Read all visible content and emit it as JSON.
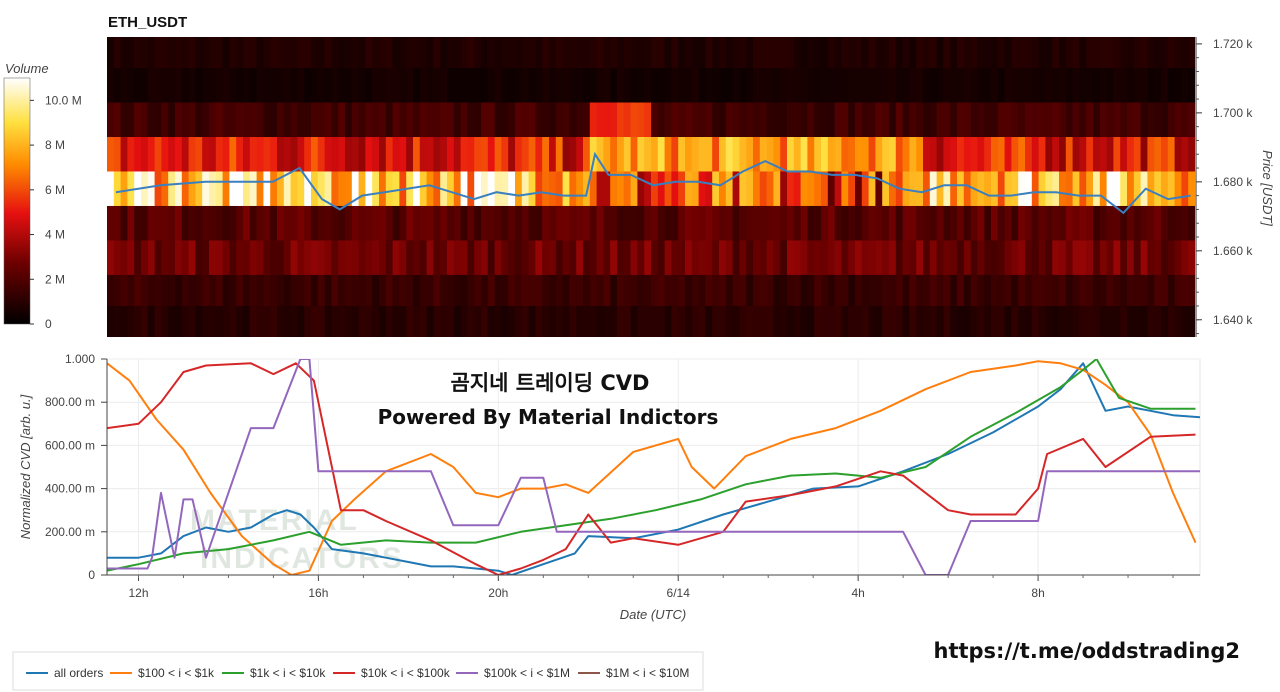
{
  "page": {
    "symbol": "ETH_USDT",
    "overlay_title": "곰지네 트레이딩 CVD",
    "overlay_subtitle": "Powered By Material Indictors",
    "telegram_url": "https://t.me/oddstrading2",
    "watermark_line1": "MATERIAL",
    "watermark_line2": "INDICATORS"
  },
  "colorbar": {
    "title": "Volume",
    "ticks": [
      "0",
      "2 M",
      "4 M",
      "6 M",
      "8 M",
      "10.0 M"
    ],
    "values": [
      0,
      2,
      4,
      6,
      8,
      10
    ],
    "range": [
      0,
      11
    ]
  },
  "chart_data": [
    {
      "type": "heatmap",
      "title": "ETH_USDT",
      "ylabel": "Price [USDT]",
      "ylim": [
        1635,
        1722
      ],
      "y_ticks": [
        1640,
        1660,
        1680,
        1700,
        1720
      ],
      "y_tick_labels": [
        "1.640 k",
        "1.660 k",
        "1.680 k",
        "1.700 k",
        "1.720 k"
      ],
      "bands": [
        {
          "price": 1717,
          "volume_M": 0.8
        },
        {
          "price": 1708,
          "volume_M": 0.5
        },
        {
          "price": 1698,
          "volume_M": 1.6
        },
        {
          "price": 1688,
          "volume_M": 5.0
        },
        {
          "price": 1678,
          "volume_M": 9.0
        },
        {
          "price": 1668,
          "volume_M": 2.2
        },
        {
          "price": 1658,
          "volume_M": 2.6
        },
        {
          "price": 1648,
          "volume_M": 1.4
        },
        {
          "price": 1639,
          "volume_M": 1.0
        }
      ],
      "price_series": {
        "name": "price",
        "x_hours": [
          11.5,
          12.5,
          13.5,
          14.5,
          15.0,
          15.6,
          16.1,
          16.5,
          17.0,
          17.5,
          18.0,
          18.5,
          19.0,
          19.5,
          20.0,
          20.5,
          21.0,
          21.5,
          22.0,
          22.2,
          22.5,
          23.0,
          23.5,
          24.0,
          24.5,
          25.0,
          25.5,
          26.0,
          26.5,
          27.0,
          27.5,
          28.0,
          28.5,
          29.0,
          29.5,
          30.0,
          30.5,
          31.0,
          31.5,
          32.0,
          32.5,
          33.0,
          33.5,
          34.0,
          34.5,
          35.0,
          35.5
        ],
        "price": [
          1677,
          1679,
          1680,
          1680,
          1680,
          1684,
          1675,
          1672,
          1676,
          1677,
          1678,
          1679,
          1677,
          1675,
          1677,
          1676,
          1677,
          1676,
          1676,
          1688,
          1682,
          1682,
          1679,
          1680,
          1680,
          1679,
          1683,
          1686,
          1683,
          1683,
          1682,
          1682,
          1681,
          1678,
          1677,
          1679,
          1679,
          1676,
          1676,
          1677,
          1677,
          1676,
          1676,
          1671,
          1678,
          1675,
          1676
        ]
      }
    },
    {
      "type": "line",
      "xlabel": "Date (UTC)",
      "ylabel": "Normalized CVD [arb. u.]",
      "xlim": [
        11.3,
        35.6
      ],
      "ylim": [
        0,
        1.0
      ],
      "x_ticks": [
        12,
        16,
        20,
        24,
        28,
        32
      ],
      "x_tick_labels": [
        "12h",
        "16h",
        "20h",
        "6/14",
        "4h",
        "8h"
      ],
      "y_ticks": [
        0,
        0.2,
        0.4,
        0.6,
        0.8,
        1.0
      ],
      "y_tick_labels": [
        "0",
        "200.00 m",
        "400.00 m",
        "600.00 m",
        "800.00 m",
        "1.000"
      ],
      "series": [
        {
          "name": "all orders",
          "color": "#1f77b4",
          "x": [
            11.3,
            12.0,
            12.5,
            13.0,
            13.5,
            14.0,
            14.5,
            15.0,
            15.3,
            15.6,
            15.9,
            16.3,
            17.0,
            17.5,
            18.0,
            18.5,
            19.0,
            19.5,
            20.0,
            20.3,
            21.0,
            21.7,
            22.0,
            23.0,
            24.0,
            25.0,
            26.0,
            27.0,
            28.0,
            29.0,
            30.0,
            31.0,
            32.0,
            32.5,
            33.0,
            33.5,
            34.0,
            35.0,
            35.6
          ],
          "y": [
            0.08,
            0.08,
            0.1,
            0.18,
            0.22,
            0.2,
            0.22,
            0.28,
            0.3,
            0.28,
            0.22,
            0.12,
            0.1,
            0.08,
            0.06,
            0.04,
            0.04,
            0.03,
            0.02,
            0.0,
            0.05,
            0.1,
            0.18,
            0.17,
            0.21,
            0.28,
            0.34,
            0.4,
            0.41,
            0.48,
            0.56,
            0.66,
            0.78,
            0.86,
            0.98,
            0.76,
            0.78,
            0.74,
            0.73
          ]
        },
        {
          "name": "$100 < i < $1k",
          "color": "#ff7f0e",
          "x": [
            11.3,
            11.8,
            12.4,
            13.0,
            13.6,
            14.3,
            15.0,
            15.4,
            15.8,
            16.3,
            16.8,
            17.5,
            18.5,
            19.0,
            19.5,
            20.0,
            20.5,
            21.0,
            21.5,
            22.0,
            23.0,
            24.0,
            24.3,
            24.8,
            25.5,
            26.5,
            27.5,
            28.5,
            29.5,
            30.5,
            31.5,
            32.0,
            32.5,
            33.0,
            33.5,
            34.0,
            34.5,
            35.0,
            35.5
          ],
          "y": [
            0.98,
            0.9,
            0.72,
            0.58,
            0.38,
            0.18,
            0.05,
            0.0,
            0.02,
            0.25,
            0.35,
            0.48,
            0.56,
            0.5,
            0.38,
            0.36,
            0.4,
            0.4,
            0.42,
            0.38,
            0.57,
            0.63,
            0.5,
            0.4,
            0.55,
            0.63,
            0.68,
            0.76,
            0.86,
            0.94,
            0.97,
            0.99,
            0.98,
            0.95,
            0.88,
            0.8,
            0.65,
            0.38,
            0.15
          ]
        },
        {
          "name": "$1k < i < $10k",
          "color": "#2ca02c",
          "x": [
            11.3,
            12.0,
            13.0,
            14.0,
            15.0,
            15.8,
            16.5,
            17.5,
            18.5,
            19.5,
            20.5,
            21.5,
            22.5,
            23.5,
            24.5,
            25.5,
            26.5,
            27.5,
            28.5,
            29.5,
            30.5,
            31.5,
            32.5,
            33.0,
            33.3,
            33.8,
            34.5,
            35.5
          ],
          "y": [
            0.02,
            0.05,
            0.1,
            0.12,
            0.16,
            0.2,
            0.14,
            0.16,
            0.15,
            0.15,
            0.2,
            0.23,
            0.26,
            0.3,
            0.35,
            0.42,
            0.46,
            0.47,
            0.45,
            0.5,
            0.64,
            0.75,
            0.87,
            0.95,
            1.0,
            0.82,
            0.77,
            0.77
          ]
        },
        {
          "name": "$10k < i < $100k",
          "color": "#d62728",
          "x": [
            11.3,
            12.0,
            12.5,
            13.0,
            13.5,
            14.5,
            15.0,
            15.5,
            15.9,
            16.2,
            16.5,
            17.0,
            17.5,
            18.5,
            19.5,
            20.0,
            20.5,
            21.0,
            21.5,
            22.0,
            22.5,
            23.0,
            24.0,
            25.0,
            25.5,
            26.5,
            27.5,
            28.5,
            29.0,
            29.5,
            30.0,
            30.5,
            31.5,
            32.0,
            32.2,
            33.0,
            33.5,
            34.5,
            35.5
          ],
          "y": [
            0.68,
            0.7,
            0.8,
            0.94,
            0.97,
            0.98,
            0.93,
            0.98,
            0.9,
            0.6,
            0.3,
            0.3,
            0.25,
            0.16,
            0.05,
            0.0,
            0.03,
            0.07,
            0.12,
            0.28,
            0.15,
            0.17,
            0.14,
            0.2,
            0.34,
            0.37,
            0.41,
            0.48,
            0.46,
            0.38,
            0.3,
            0.28,
            0.28,
            0.4,
            0.56,
            0.63,
            0.5,
            0.64,
            0.65
          ]
        },
        {
          "name": "$100k < i < $1M",
          "color": "#9467bd",
          "x": [
            11.3,
            12.2,
            12.3,
            12.5,
            12.8,
            13.0,
            13.2,
            13.5,
            14.0,
            14.5,
            15.0,
            15.6,
            15.8,
            16.0,
            16.5,
            18.5,
            19.0,
            20.0,
            20.5,
            21.0,
            21.3,
            22.0,
            29.0,
            29.5,
            30.0,
            30.5,
            31.0,
            31.5,
            32.0,
            32.2,
            33.0,
            35.6
          ],
          "y": [
            0.03,
            0.03,
            0.08,
            0.38,
            0.08,
            0.35,
            0.35,
            0.08,
            0.38,
            0.68,
            0.68,
            1.0,
            1.0,
            0.48,
            0.48,
            0.48,
            0.23,
            0.23,
            0.45,
            0.45,
            0.2,
            0.2,
            0.2,
            0.0,
            0.0,
            0.25,
            0.25,
            0.25,
            0.25,
            0.48,
            0.48,
            0.48
          ]
        },
        {
          "name": "$1M < i < $10M",
          "color": "#8c564b",
          "x": [],
          "y": []
        }
      ]
    }
  ]
}
